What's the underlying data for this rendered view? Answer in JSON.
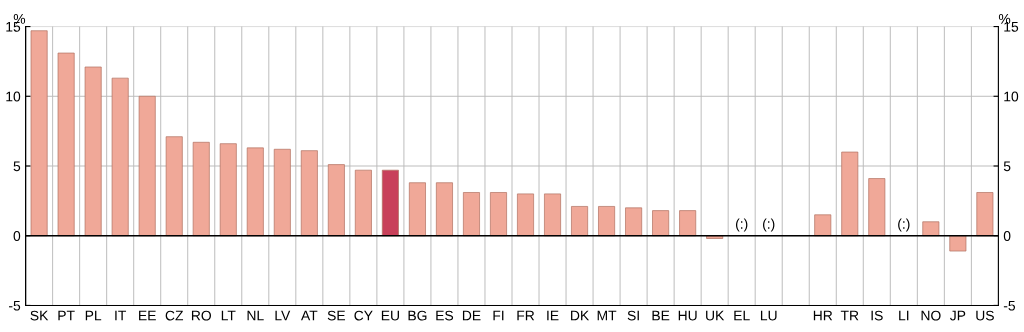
{
  "chart_data": {
    "type": "bar",
    "categories": [
      "SK",
      "PT",
      "PL",
      "IT",
      "EE",
      "CZ",
      "RO",
      "LT",
      "NL",
      "LV",
      "AT",
      "SE",
      "CY",
      "EU",
      "BG",
      "ES",
      "DE",
      "FI",
      "FR",
      "IE",
      "DK",
      "MT",
      "SI",
      "BE",
      "HU",
      "UK",
      "EL",
      "LU",
      null,
      "HR",
      "TR",
      "IS",
      "LI",
      "NO",
      "JP",
      "US"
    ],
    "values": [
      14.7,
      13.1,
      12.1,
      11.3,
      10.0,
      7.1,
      6.7,
      6.6,
      6.3,
      6.2,
      6.1,
      5.1,
      4.7,
      4.7,
      3.8,
      3.8,
      3.1,
      3.1,
      3.0,
      3.0,
      2.1,
      2.1,
      2.0,
      1.8,
      1.8,
      -0.2,
      null,
      null,
      null,
      1.5,
      6.0,
      4.1,
      null,
      1.0,
      -1.1,
      3.1
    ],
    "colors": [
      "#f0a898",
      "#f0a898",
      "#f0a898",
      "#f0a898",
      "#f0a898",
      "#f0a898",
      "#f0a898",
      "#f0a898",
      "#f0a898",
      "#f0a898",
      "#f0a898",
      "#f0a898",
      "#f0a898",
      "#c8405a",
      "#f0a898",
      "#f0a898",
      "#f0a898",
      "#f0a898",
      "#f0a898",
      "#f0a898",
      "#f0a898",
      "#f0a898",
      "#f0a898",
      "#f0a898",
      "#f0a898",
      "#f0a898",
      "#f0a898",
      "#f0a898",
      "#f0a898",
      "#f0a898",
      "#f0a898",
      "#f0a898",
      "#f0a898",
      "#f0a898",
      "#f0a898",
      "#f0a898"
    ],
    "value_labels": [
      null,
      null,
      null,
      null,
      null,
      null,
      null,
      null,
      null,
      null,
      null,
      null,
      null,
      null,
      null,
      null,
      null,
      null,
      null,
      null,
      null,
      null,
      null,
      null,
      null,
      null,
      "(:)",
      "(:)",
      null,
      null,
      null,
      null,
      "(:)",
      null,
      null,
      null
    ],
    "ylabel": "%",
    "y2label": "%",
    "ylim": [
      -5,
      15
    ],
    "yticks": [
      -5,
      0,
      5,
      10,
      15
    ],
    "y2lim": [
      -5,
      15
    ],
    "y2ticks": [
      -5,
      0,
      5,
      10,
      15
    ],
    "grid": true
  }
}
